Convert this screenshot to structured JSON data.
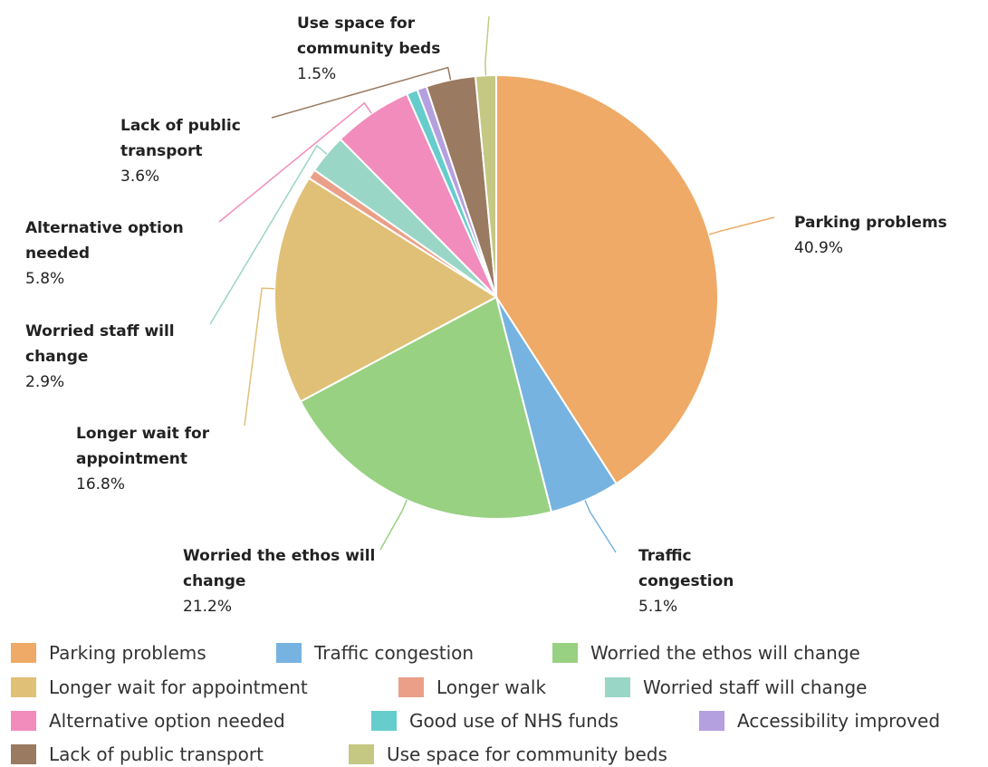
{
  "chart_data": {
    "type": "pie",
    "categories": [
      "Parking problems",
      "Traffic congestion",
      "Worried the ethos will change",
      "Longer wait for appointment",
      "Longer walk",
      "Worried staff will change",
      "Alternative option needed",
      "Good use of NHS funds",
      "Accessibility improved",
      "Lack of public transport",
      "Use space for community beds"
    ],
    "values": [
      40.9,
      5.1,
      21.2,
      16.8,
      0.7,
      2.9,
      5.8,
      0.8,
      0.7,
      3.6,
      1.5
    ],
    "value_labels": [
      "40.9%",
      "5.1%",
      "21.2%",
      "16.8%",
      null,
      "2.9%",
      "5.8%",
      null,
      null,
      "3.6%",
      "1.5%"
    ],
    "colors": [
      "#eeaa66",
      "#77b3e0",
      "#99d182",
      "#e0c077",
      "#eb9f88",
      "#99d6c6",
      "#f28cbd",
      "#66cccc",
      "#b49fdf",
      "#9a7a60",
      "#c4c882"
    ],
    "legend": "bottom"
  }
}
